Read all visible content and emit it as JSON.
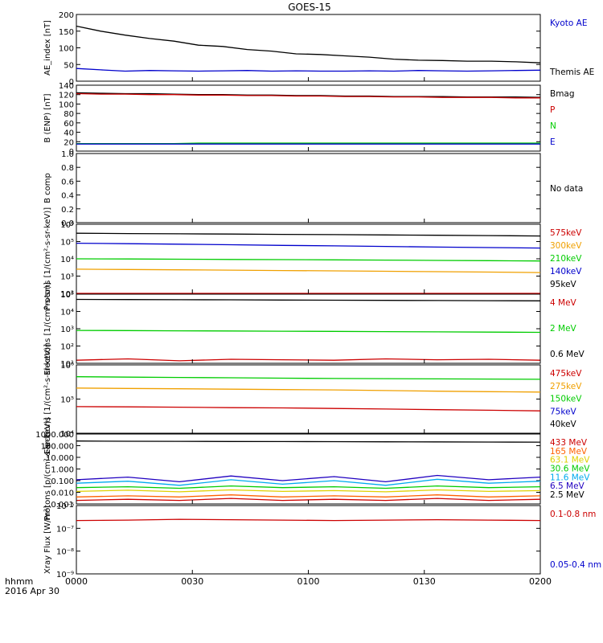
{
  "title": "GOES-15",
  "time_axis": {
    "ticks": [
      "0000",
      "0030",
      "0100",
      "0130",
      "0200"
    ],
    "unit_label": "hhmm",
    "date_label": "2016 Apr 30"
  },
  "chart_data": [
    {
      "type": "line",
      "ylabel": "AE_index [nT]",
      "yticks": [
        "0",
        "50",
        "100",
        "150",
        "200"
      ],
      "ylim": [
        0,
        200
      ],
      "scale": "linear",
      "series": [
        {
          "name": "Kyoto AE",
          "color": "#0000cc",
          "values": [
            38,
            34,
            30,
            32,
            31,
            30,
            31,
            32,
            30,
            31,
            30,
            30,
            31,
            30,
            32,
            31,
            30,
            31,
            32,
            33
          ]
        },
        {
          "name": "Themis AE",
          "color": "#000000",
          "values": [
            165,
            150,
            138,
            128,
            120,
            108,
            104,
            95,
            90,
            82,
            80,
            76,
            72,
            66,
            63,
            62,
            60,
            60,
            58,
            55
          ]
        }
      ]
    },
    {
      "type": "line",
      "ylabel": "B (ENP) [nT]",
      "yticks": [
        "0",
        "20",
        "40",
        "60",
        "80",
        "100",
        "120",
        "140"
      ],
      "ylim": [
        0,
        140
      ],
      "scale": "linear",
      "series": [
        {
          "name": "Bmag",
          "color": "#000000",
          "values": [
            124,
            123,
            122,
            122,
            121,
            120,
            120,
            119,
            119,
            118,
            118,
            117,
            117,
            116,
            116,
            116,
            115,
            115,
            115,
            114
          ]
        },
        {
          "name": "P",
          "color": "#cc0000",
          "values": [
            122,
            121,
            121,
            120,
            120,
            119,
            119,
            118,
            118,
            117,
            117,
            116,
            116,
            115,
            115,
            114,
            114,
            114,
            113,
            113
          ]
        },
        {
          "name": "N",
          "color": "#00cc00",
          "values": [
            16,
            16,
            16,
            16,
            16,
            17,
            17,
            17,
            17,
            17,
            17,
            17,
            17,
            17,
            17,
            17,
            17,
            17,
            17,
            17
          ]
        },
        {
          "name": "E",
          "color": "#0000cc",
          "values": [
            15,
            15,
            15,
            15,
            15,
            15,
            15,
            15,
            15,
            15,
            15,
            15,
            15,
            15,
            15,
            15,
            15,
            15,
            15,
            15
          ]
        }
      ]
    },
    {
      "type": "line",
      "ylabel": "B comp",
      "yticks": [
        "0.0",
        "0.2",
        "0.4",
        "0.6",
        "0.8",
        "1.0"
      ],
      "ylim": [
        0,
        1
      ],
      "scale": "linear",
      "note": "No data",
      "series": []
    },
    {
      "type": "line",
      "ylabel": "Protons [1/(cm²-s-sr-keV)]",
      "yticks": [
        "10²",
        "10³",
        "10⁴",
        "10⁵",
        "10⁶"
      ],
      "ylim": [
        100,
        1000000
      ],
      "scale": "log",
      "series": [
        {
          "name": "575keV",
          "color": "#cc0000",
          "values": [
            100,
            100,
            100,
            100,
            100,
            100,
            100,
            100,
            100,
            100
          ]
        },
        {
          "name": "300keV",
          "color": "#f0a000",
          "values": [
            2500,
            2400,
            2300,
            2200,
            2100,
            2000,
            1900,
            1800,
            1700,
            1600
          ]
        },
        {
          "name": "210keV",
          "color": "#00cc00",
          "values": [
            10000,
            9800,
            9500,
            9200,
            9000,
            8700,
            8400,
            8100,
            7800,
            7500
          ]
        },
        {
          "name": "140keV",
          "color": "#0000cc",
          "values": [
            80000,
            75000,
            70000,
            65000,
            60000,
            56000,
            52000,
            48000,
            45000,
            42000
          ]
        },
        {
          "name": "95keV",
          "color": "#000000",
          "values": [
            300000,
            290000,
            280000,
            270000,
            260000,
            250000,
            240000,
            230000,
            220000,
            210000
          ]
        }
      ]
    },
    {
      "type": "line",
      "ylabel": "Electrons [1/(cm²-s-sr)]",
      "yticks": [
        "10¹",
        "10²",
        "10³",
        "10⁴",
        "10⁵"
      ],
      "ylim": [
        10,
        100000
      ],
      "scale": "log",
      "series": [
        {
          "name": "4 MeV",
          "color": "#cc0000",
          "values": [
            15,
            18,
            14,
            17,
            16,
            15,
            18,
            16,
            17,
            15
          ]
        },
        {
          "name": "2 MeV",
          "color": "#00cc00",
          "values": [
            800,
            780,
            760,
            740,
            720,
            700,
            680,
            660,
            640,
            620
          ]
        },
        {
          "name": "0.6 MeV",
          "color": "#000000",
          "values": [
            50000,
            49000,
            48000,
            47000,
            46000,
            45000,
            44000,
            43000,
            42000,
            41000
          ]
        }
      ]
    },
    {
      "type": "line",
      "ylabel": "Electrons [1/(cm²-s-sr-keV)]",
      "yticks": [
        "10⁴",
        "10⁵",
        "10⁶"
      ],
      "ylim": [
        10000,
        1000000
      ],
      "scale": "log",
      "series": [
        {
          "name": "475keV",
          "color": "#cc0000",
          "values": [
            60000,
            59000,
            58000,
            56000,
            55000,
            53000,
            51000,
            49000,
            47000,
            45000
          ]
        },
        {
          "name": "275keV",
          "color": "#f0a000",
          "values": [
            210000,
            205000,
            200000,
            195000,
            190000,
            185000,
            178000,
            170000,
            165000,
            160000
          ]
        },
        {
          "name": "150keV",
          "color": "#00cc00",
          "values": [
            450000,
            440000,
            430000,
            420000,
            410000,
            400000,
            395000,
            390000,
            385000,
            380000
          ]
        },
        {
          "name": "75keV",
          "color": "#0000cc",
          "values": []
        },
        {
          "name": "40keV",
          "color": "#000000",
          "values": []
        }
      ]
    },
    {
      "type": "line",
      "ylabel": "Protons [p/(cm²-s-sr-keV)]",
      "yticks": [
        "0.001",
        "0.010",
        "0.100",
        "1.000",
        "10.000",
        "100.000",
        "1000.000"
      ],
      "ylim": [
        0.001,
        1000
      ],
      "scale": "log",
      "series": [
        {
          "name": "433 MeV",
          "color": "#cc0000",
          "values": [
            0.002,
            0.0025,
            0.002,
            0.003,
            0.002,
            0.0025,
            0.002,
            0.003,
            0.002,
            0.0025
          ]
        },
        {
          "name": "165 MeV",
          "color": "#ff6000",
          "values": [
            0.004,
            0.005,
            0.004,
            0.006,
            0.004,
            0.005,
            0.004,
            0.006,
            0.004,
            0.005
          ]
        },
        {
          "name": "63.1 MeV",
          "color": "#e0d000",
          "values": [
            0.012,
            0.015,
            0.011,
            0.016,
            0.012,
            0.014,
            0.011,
            0.016,
            0.012,
            0.014
          ]
        },
        {
          "name": "30.6 MeV",
          "color": "#00cc00",
          "values": [
            0.025,
            0.03,
            0.022,
            0.035,
            0.025,
            0.03,
            0.022,
            0.035,
            0.025,
            0.03
          ]
        },
        {
          "name": "11.6 MeV",
          "color": "#00aaee",
          "values": [
            0.06,
            0.09,
            0.04,
            0.12,
            0.05,
            0.1,
            0.04,
            0.13,
            0.06,
            0.09
          ]
        },
        {
          "name": "6.5 MeV",
          "color": "#2000c0",
          "values": [
            0.12,
            0.2,
            0.08,
            0.25,
            0.1,
            0.22,
            0.08,
            0.28,
            0.12,
            0.2
          ]
        },
        {
          "name": "2.5 MeV",
          "color": "#000000",
          "values": [
            250,
            240,
            235,
            230,
            225,
            220,
            215,
            210,
            205,
            200
          ]
        }
      ]
    },
    {
      "type": "line",
      "ylabel": "Xray Flux [W/m²]",
      "yticks": [
        "10⁻⁹",
        "10⁻⁸",
        "10⁻⁷",
        "10⁻⁶"
      ],
      "ylim": [
        1e-09,
        1e-06
      ],
      "scale": "log",
      "series": [
        {
          "name": "0.1-0.8 nm",
          "color": "#cc0000",
          "values": [
            2.2e-07,
            2.3e-07,
            2.5e-07,
            2.4e-07,
            2.3e-07,
            2.2e-07,
            2.3e-07,
            2.4e-07,
            2.3e-07,
            2.2e-07
          ]
        },
        {
          "name": "0.05-0.4 nm",
          "color": "#0000cc",
          "values": []
        }
      ]
    }
  ]
}
